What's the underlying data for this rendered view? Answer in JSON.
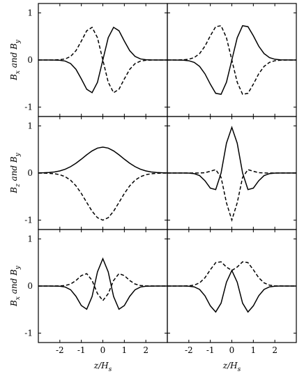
{
  "chart_data": [
    {
      "type": "line",
      "ylabel": "B_x and B_y",
      "xlim": [
        -3,
        3
      ],
      "ylim": [
        -1.2,
        1.2
      ],
      "xticks": [
        -2,
        -1,
        0,
        1,
        2
      ],
      "yticks": [
        -1,
        0,
        1
      ],
      "xticklabels": false,
      "yticklabels": true,
      "x": [
        -3,
        -2.75,
        -2.5,
        -2.25,
        -2,
        -1.75,
        -1.5,
        -1.25,
        -1,
        -0.75,
        -0.5,
        -0.25,
        0,
        0.25,
        0.5,
        0.75,
        1,
        1.25,
        1.5,
        1.75,
        2,
        2.25,
        2.5,
        2.75,
        3
      ],
      "series": [
        {
          "color": "#000000",
          "dash": false,
          "values": [
            0,
            0,
            0,
            -0.001,
            -0.006,
            -0.023,
            -0.076,
            -0.198,
            -0.402,
            -0.621,
            -0.694,
            -0.473,
            0,
            0.473,
            0.694,
            0.621,
            0.402,
            0.198,
            0.076,
            0.023,
            0.006,
            0.001,
            0,
            0,
            0
          ]
        },
        {
          "color": "#000000",
          "dash": true,
          "values": [
            0,
            0,
            0,
            0.001,
            0.006,
            0.023,
            0.076,
            0.198,
            0.402,
            0.621,
            0.694,
            0.473,
            0,
            -0.473,
            -0.694,
            -0.621,
            -0.402,
            -0.198,
            -0.076,
            -0.023,
            -0.006,
            -0.001,
            0,
            0,
            0
          ]
        }
      ]
    },
    {
      "type": "line",
      "xlim": [
        -3,
        3
      ],
      "ylim": [
        -1.2,
        1.2
      ],
      "xticks": [
        -2,
        -1,
        0,
        1,
        2
      ],
      "yticks": [
        -1,
        0,
        1
      ],
      "xticklabels": false,
      "yticklabels": false,
      "x": [
        -3,
        -2.75,
        -2.5,
        -2.25,
        -2,
        -1.75,
        -1.5,
        -1.25,
        -1,
        -0.75,
        -0.5,
        -0.25,
        0,
        0.25,
        0.5,
        0.75,
        1,
        1.25,
        1.5,
        1.75,
        2,
        2.25,
        2.5,
        2.75,
        3
      ],
      "series": [
        {
          "color": "#000000",
          "dash": false,
          "values": [
            0,
            0,
            -0.001,
            -0.004,
            -0.016,
            -0.051,
            -0.136,
            -0.294,
            -0.514,
            -0.708,
            -0.728,
            -0.472,
            0,
            0.472,
            0.728,
            0.708,
            0.514,
            0.294,
            0.136,
            0.051,
            0.016,
            0.004,
            0.001,
            0,
            0
          ]
        },
        {
          "color": "#000000",
          "dash": true,
          "values": [
            0,
            0,
            0.001,
            0.004,
            0.016,
            0.051,
            0.136,
            0.294,
            0.514,
            0.708,
            0.728,
            0.472,
            0,
            -0.472,
            -0.728,
            -0.708,
            -0.514,
            -0.294,
            -0.136,
            -0.051,
            -0.016,
            -0.004,
            -0.001,
            0,
            0
          ]
        }
      ]
    },
    {
      "type": "line",
      "ylabel": "B_z and B_y",
      "xlim": [
        -3,
        3
      ],
      "ylim": [
        -1.2,
        1.2
      ],
      "xticks": [
        -2,
        -1,
        0,
        1,
        2
      ],
      "yticks": [
        -1,
        0,
        1
      ],
      "xticklabels": false,
      "yticklabels": true,
      "x": [
        -3,
        -2.75,
        -2.5,
        -2.25,
        -2,
        -1.75,
        -1.5,
        -1.25,
        -1,
        -0.75,
        -0.5,
        -0.25,
        0,
        0.25,
        0.5,
        0.75,
        1,
        1.25,
        1.5,
        1.75,
        2,
        2.25,
        2.5,
        2.75,
        3
      ],
      "series": [
        {
          "color": "#000000",
          "dash": false,
          "values": [
            0.002,
            0.005,
            0.011,
            0.023,
            0.045,
            0.081,
            0.135,
            0.207,
            0.294,
            0.387,
            0.47,
            0.529,
            0.55,
            0.529,
            0.47,
            0.387,
            0.294,
            0.207,
            0.135,
            0.081,
            0.045,
            0.023,
            0.011,
            0.005,
            0.002
          ]
        },
        {
          "color": "#000000",
          "dash": true,
          "values": [
            -0.001,
            -0.002,
            -0.006,
            -0.015,
            -0.036,
            -0.078,
            -0.153,
            -0.272,
            -0.435,
            -0.626,
            -0.812,
            -0.949,
            -1,
            -0.949,
            -0.812,
            -0.626,
            -0.435,
            -0.272,
            -0.153,
            -0.078,
            -0.036,
            -0.015,
            -0.006,
            -0.002,
            -0.001
          ]
        }
      ]
    },
    {
      "type": "line",
      "xlim": [
        -3,
        3
      ],
      "ylim": [
        -1.2,
        1.2
      ],
      "xticks": [
        -2,
        -1,
        0,
        1,
        2
      ],
      "yticks": [
        -1,
        0,
        1
      ],
      "xticklabels": false,
      "yticklabels": false,
      "x": [
        -3,
        -2.75,
        -2.5,
        -2.25,
        -2,
        -1.75,
        -1.5,
        -1.25,
        -1,
        -0.75,
        -0.5,
        -0.25,
        0,
        0.25,
        0.5,
        0.75,
        1,
        1.25,
        1.5,
        1.75,
        2,
        2.25,
        2.5,
        2.75,
        3
      ],
      "series": [
        {
          "color": "#000000",
          "dash": false,
          "values": [
            0,
            0,
            0,
            0,
            -0.002,
            -0.013,
            -0.055,
            -0.164,
            -0.322,
            -0.352,
            0,
            0.634,
            0.97,
            0.634,
            0,
            -0.352,
            -0.322,
            -0.164,
            -0.055,
            -0.013,
            -0.002,
            0,
            0,
            0,
            0
          ]
        },
        {
          "color": "#000000",
          "dash": true,
          "values": [
            0,
            0,
            0,
            0,
            0,
            0,
            0.001,
            0.007,
            0.037,
            0.072,
            -0.092,
            -0.633,
            -1,
            -0.633,
            -0.092,
            0.072,
            0.037,
            0.007,
            0.001,
            0,
            0,
            0,
            0,
            0,
            0
          ]
        }
      ]
    },
    {
      "type": "line",
      "ylabel": "B_x and B_y",
      "xlabel": "z/H_s",
      "xlim": [
        -3,
        3
      ],
      "ylim": [
        -1.2,
        1.2
      ],
      "xticks": [
        -2,
        -1,
        0,
        1,
        2
      ],
      "yticks": [
        -1,
        0,
        1
      ],
      "xticklabels": true,
      "yticklabels": true,
      "x": [
        -3,
        -2.75,
        -2.5,
        -2.25,
        -2,
        -1.75,
        -1.5,
        -1.25,
        -1,
        -0.75,
        -0.5,
        -0.25,
        0,
        0.25,
        0.5,
        0.75,
        1,
        1.25,
        1.5,
        1.75,
        2,
        2.25,
        2.5,
        2.75,
        3
      ],
      "series": [
        {
          "color": "#000000",
          "dash": false,
          "values": [
            0,
            0,
            0,
            -0.001,
            -0.004,
            -0.021,
            -0.079,
            -0.218,
            -0.415,
            -0.493,
            -0.222,
            0.301,
            0.58,
            0.301,
            -0.222,
            -0.493,
            -0.415,
            -0.218,
            -0.079,
            -0.021,
            -0.004,
            -0.001,
            0,
            0,
            0
          ]
        },
        {
          "color": "#000000",
          "dash": true,
          "values": [
            0,
            0,
            0,
            0.001,
            0.002,
            0.011,
            0.042,
            0.117,
            0.222,
            0.263,
            0.119,
            -0.161,
            -0.31,
            -0.161,
            0.119,
            0.263,
            0.222,
            0.117,
            0.042,
            0.011,
            0.002,
            0.001,
            0,
            0,
            0
          ]
        }
      ]
    },
    {
      "type": "line",
      "xlabel": "z/H_s",
      "xlim": [
        -3,
        3
      ],
      "ylim": [
        -1.2,
        1.2
      ],
      "xticks": [
        -2,
        -1,
        0,
        1,
        2
      ],
      "yticks": [
        -1,
        0,
        1
      ],
      "xticklabels": true,
      "yticklabels": false,
      "x": [
        -3,
        -2.75,
        -2.5,
        -2.25,
        -2,
        -1.75,
        -1.5,
        -1.25,
        -1,
        -0.75,
        -0.5,
        -0.25,
        0,
        0.25,
        0.5,
        0.75,
        1,
        1.25,
        1.5,
        1.75,
        2,
        2.25,
        2.5,
        2.75,
        3
      ],
      "series": [
        {
          "color": "#000000",
          "dash": false,
          "values": [
            0,
            0,
            0,
            0,
            -0.003,
            -0.018,
            -0.072,
            -0.208,
            -0.421,
            -0.551,
            -0.364,
            0.082,
            0.33,
            0.082,
            -0.364,
            -0.551,
            -0.421,
            -0.208,
            -0.072,
            -0.018,
            -0.003,
            0,
            0,
            0,
            0
          ]
        },
        {
          "color": "#000000",
          "dash": true,
          "values": [
            0,
            0,
            0,
            0.001,
            0.004,
            0.019,
            0.067,
            0.176,
            0.346,
            0.497,
            0.514,
            0.403,
            0.33,
            0.403,
            0.514,
            0.497,
            0.346,
            0.176,
            0.067,
            0.019,
            0.004,
            0.001,
            0,
            0,
            0
          ]
        }
      ]
    }
  ]
}
